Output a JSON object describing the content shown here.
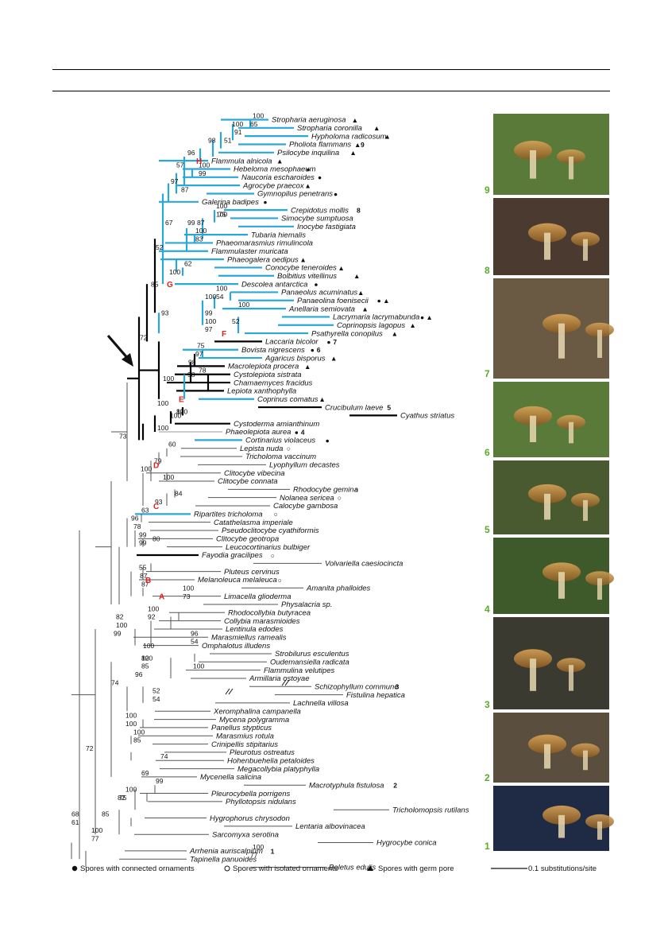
{
  "colors": {
    "clade": "#2aa7d9",
    "backbone": "#000000",
    "thin": "#555555",
    "letter": "#e02020",
    "photoLabel": "#5aaa2a"
  },
  "taxa": [
    {
      "name": "Stropharia aeruginosa",
      "sym": "▲",
      "c": "b"
    },
    {
      "name": "Stropharia coronilla",
      "sym": "▲",
      "c": "b"
    },
    {
      "name": "Hypholoma radicosum",
      "sym": "▲",
      "c": "b"
    },
    {
      "name": "Pholiota flammans",
      "sym": "▲",
      "photo": "9",
      "c": "b"
    },
    {
      "name": "Psilocybe inquilina",
      "sym": "▲",
      "c": "b"
    },
    {
      "name": "Flammula alnicola",
      "sym": "▲",
      "c": "b"
    },
    {
      "name": "Hebeloma mesophaeum",
      "sym": "●",
      "c": "b"
    },
    {
      "name": "Naucoria escharoides",
      "sym": "●",
      "c": "b"
    },
    {
      "name": "Agrocybe praecox",
      "sym": "▲",
      "c": "b"
    },
    {
      "name": "Gymnopilus penetrans",
      "sym": "●",
      "c": "b"
    },
    {
      "name": "Galerina badipes",
      "sym": "●",
      "c": "b"
    },
    {
      "name": "Crepidotus mollis",
      "photo": "8",
      "c": "b"
    },
    {
      "name": "Simocybe sumptuosa",
      "c": "b"
    },
    {
      "name": "Inocybe fastigiata",
      "c": "b"
    },
    {
      "name": "Tubaria hiemalis",
      "c": "b"
    },
    {
      "name": "Phaeomarasmius rimulincola",
      "c": "b"
    },
    {
      "name": "Flammulaster muricata",
      "c": "b"
    },
    {
      "name": "Phaeogalera oedipus",
      "sym": "▲",
      "c": "b"
    },
    {
      "name": "Conocybe teneroides",
      "sym": "▲",
      "c": "b"
    },
    {
      "name": "Bolbitius vitellinus",
      "sym": "▲",
      "c": "b"
    },
    {
      "name": "Descolea antarctica",
      "sym": "●",
      "c": "b"
    },
    {
      "name": "Panaeolus acuminatus",
      "sym": "▲",
      "c": "b"
    },
    {
      "name": "Panaeolina foenisecii",
      "sym": "● ▲",
      "c": "b"
    },
    {
      "name": "Anellaria semiovata",
      "sym": "▲",
      "c": "b"
    },
    {
      "name": "Lacrymaria lacrymabunda",
      "sym": "● ▲",
      "c": "b"
    },
    {
      "name": "Coprinopsis lagopus",
      "sym": "▲",
      "c": "b"
    },
    {
      "name": "Psathyrella conopilus",
      "sym": "▲",
      "c": "b"
    },
    {
      "name": "Laccaria bicolor",
      "sym": "●",
      "photo": "7",
      "c": "k"
    },
    {
      "name": "Bovista nigrescens",
      "sym": "●",
      "photo": "6",
      "c": "b"
    },
    {
      "name": "Agaricus bisporus",
      "sym": "▲",
      "c": "b"
    },
    {
      "name": "Macrolepiota procera",
      "sym": "▲",
      "c": "k"
    },
    {
      "name": "Cystolepiota sistrata",
      "c": "k"
    },
    {
      "name": "Chamaemyces fracidus",
      "c": "k"
    },
    {
      "name": "Lepiota xanthophylla",
      "c": "k"
    },
    {
      "name": "Coprinus comatus",
      "sym": "▲",
      "c": "b"
    },
    {
      "name": "Crucibulum laeve",
      "photo": "5",
      "c": "k"
    },
    {
      "name": "Cyathus striatus",
      "c": "k"
    },
    {
      "name": "Cystoderma amianthinum",
      "c": "k"
    },
    {
      "name": "Phaeolepiota aurea",
      "sym": "●",
      "photo": "4",
      "c": "g"
    },
    {
      "name": "Cortinarius violaceus",
      "sym": "●",
      "c": "b"
    },
    {
      "name": "Lepista nuda",
      "sym": "○",
      "c": "t"
    },
    {
      "name": "Tricholoma vaccinum",
      "c": "t"
    },
    {
      "name": "Lyophyllum decastes",
      "c": "t"
    },
    {
      "name": "Clitocybe vibecina",
      "c": "t"
    },
    {
      "name": "Clitocybe connata",
      "c": "t"
    },
    {
      "name": "Rhodocybe gemina",
      "sym": "○",
      "c": "t"
    },
    {
      "name": "Nolanea sericea",
      "sym": "○",
      "c": "t"
    },
    {
      "name": "Calocybe gambosa",
      "c": "t"
    },
    {
      "name": "Ripartites tricholoma",
      "sym": "○",
      "c": "b"
    },
    {
      "name": "Catathelasma imperiale",
      "c": "t"
    },
    {
      "name": "Pseudoclitocybe cyathiformis",
      "c": "t"
    },
    {
      "name": "Clitocybe geotropa",
      "c": "t"
    },
    {
      "name": "Leucocortinarius bulbiger",
      "c": "t"
    },
    {
      "name": "Fayodia gracilipes",
      "sym": "○",
      "c": "k"
    },
    {
      "name": "Volvariella caesiocincta",
      "c": "t"
    },
    {
      "name": "Pluteus cervinus",
      "c": "t"
    },
    {
      "name": "Melanoleuca melaleuca",
      "sym": "○",
      "c": "t"
    },
    {
      "name": "Amanita phalloides",
      "c": "t"
    },
    {
      "name": "Limacella glioderma",
      "c": "t"
    },
    {
      "name": "Physalacria sp.",
      "c": "t"
    },
    {
      "name": "Rhodocollybia butyracea",
      "c": "t"
    },
    {
      "name": "Collybia marasmioides",
      "c": "t"
    },
    {
      "name": "Lentinula edodes",
      "c": "t"
    },
    {
      "name": "Marasmiellus ramealis",
      "c": "t"
    },
    {
      "name": "Omphalotus illudens",
      "c": "t"
    },
    {
      "name": "Strobilurus esculentus",
      "c": "t"
    },
    {
      "name": "Oudemansiella radicata",
      "c": "t"
    },
    {
      "name": "Flammulina velutipes",
      "c": "t"
    },
    {
      "name": "Armillaria ostoyae",
      "c": "t"
    },
    {
      "name": "Schizophyllum commune",
      "photo": "3",
      "c": "t"
    },
    {
      "name": "Fistulina hepatica",
      "c": "t"
    },
    {
      "name": "Lachnella villosa",
      "c": "t"
    },
    {
      "name": "Xeromphalina campanella",
      "c": "t"
    },
    {
      "name": "Mycena polygramma",
      "c": "t"
    },
    {
      "name": "Panellus stypticus",
      "c": "t"
    },
    {
      "name": "Marasmius rotula",
      "c": "t"
    },
    {
      "name": "Crinipellis stipitarius",
      "c": "t"
    },
    {
      "name": "Pleurotus ostreatus",
      "c": "t"
    },
    {
      "name": "Hohenbuehelia petaloides",
      "c": "t"
    },
    {
      "name": "Megacollybia platyphylla",
      "c": "t"
    },
    {
      "name": "Mycenella salicina",
      "c": "t"
    },
    {
      "name": "Macrotyphula fistulosa",
      "photo": "2",
      "c": "t"
    },
    {
      "name": "Pleurocybella porrigens",
      "c": "t"
    },
    {
      "name": "Phyllotopsis nidulans",
      "c": "t"
    },
    {
      "name": "Tricholomopsis rutilans",
      "c": "t"
    },
    {
      "name": "Hygrophorus chrysodon",
      "c": "t"
    },
    {
      "name": "Lentaria albovinacea",
      "c": "t"
    },
    {
      "name": "Sarcomyxa serotina",
      "c": "t"
    },
    {
      "name": "Hygrocybe conica",
      "c": "t"
    },
    {
      "name": "Arrhenia auriscalpium",
      "photo": "1",
      "c": "t"
    },
    {
      "name": "Tapinella panuoides",
      "c": "t"
    },
    {
      "name": "Boletus edulis",
      "c": "t"
    }
  ],
  "supports": [
    {
      "v": "100",
      "r": 0
    },
    {
      "v": "65",
      "r": 1
    },
    {
      "v": "100",
      "r": 1
    },
    {
      "v": "91",
      "r": 2
    },
    {
      "v": "51",
      "r": 3
    },
    {
      "v": "98",
      "r": 3
    },
    {
      "v": "96",
      "r": 4.5
    },
    {
      "v": "57",
      "r": 6
    },
    {
      "v": "100",
      "r": 6
    },
    {
      "v": "99",
      "r": 7
    },
    {
      "v": "97",
      "r": 8
    },
    {
      "v": "87",
      "r": 9
    },
    {
      "v": "100",
      "r": 11
    },
    {
      "v": "100",
      "r": 12
    },
    {
      "v": "75",
      "r": 12
    },
    {
      "v": "87",
      "r": 13
    },
    {
      "v": "99",
      "r": 13
    },
    {
      "v": "67",
      "r": 13
    },
    {
      "v": "100",
      "r": 14
    },
    {
      "v": "83",
      "r": 15
    },
    {
      "v": "52",
      "r": 16
    },
    {
      "v": "62",
      "r": 18
    },
    {
      "v": "100",
      "r": 19
    },
    {
      "v": "85",
      "r": 20.5
    },
    {
      "v": "100",
      "r": 21
    },
    {
      "v": "54",
      "r": 22
    },
    {
      "v": "100",
      "r": 22
    },
    {
      "v": "100",
      "r": 23
    },
    {
      "v": "93",
      "r": 24
    },
    {
      "v": "99",
      "r": 24
    },
    {
      "v": "100",
      "r": 25
    },
    {
      "v": "52",
      "r": 25
    },
    {
      "v": "97",
      "r": 26
    },
    {
      "v": "72",
      "r": 27
    },
    {
      "v": "75",
      "r": 28
    },
    {
      "v": "97",
      "r": 29
    },
    {
      "v": "98",
      "r": 30
    },
    {
      "v": "78",
      "r": 31
    },
    {
      "v": "98",
      "r": 31.5
    },
    {
      "v": "100",
      "r": 32
    },
    {
      "v": "100",
      "r": 35
    },
    {
      "v": "100",
      "r": 36
    },
    {
      "v": "82",
      "r": 36
    },
    {
      "v": "100",
      "r": 36.5
    },
    {
      "v": "100",
      "r": 38
    },
    {
      "v": "73",
      "r": 39
    },
    {
      "v": "60",
      "r": 40
    },
    {
      "v": "79",
      "r": 42
    },
    {
      "v": "100",
      "r": 43
    },
    {
      "v": "100",
      "r": 44
    },
    {
      "v": "84",
      "r": 46
    },
    {
      "v": "93",
      "r": 47
    },
    {
      "v": "63",
      "r": 48
    },
    {
      "v": "96",
      "r": 49
    },
    {
      "v": "78",
      "r": 50
    },
    {
      "v": "99",
      "r": 51
    },
    {
      "v": "80",
      "r": 51.5
    },
    {
      "v": "99",
      "r": 52
    },
    {
      "v": "55",
      "r": 55
    },
    {
      "v": "87",
      "r": 56
    },
    {
      "v": "87",
      "r": 57
    },
    {
      "v": "100",
      "r": 57.5
    },
    {
      "v": "73",
      "r": 58.5
    },
    {
      "v": "100",
      "r": 60
    },
    {
      "v": "92",
      "r": 61
    },
    {
      "v": "82",
      "r": 61
    },
    {
      "v": "100",
      "r": 62
    },
    {
      "v": "99",
      "r": 63
    },
    {
      "v": "96",
      "r": 63
    },
    {
      "v": "54",
      "r": 64
    },
    {
      "v": "100",
      "r": 64.5
    },
    {
      "v": "100",
      "r": 66
    },
    {
      "v": "82",
      "r": 66
    },
    {
      "v": "85",
      "r": 67
    },
    {
      "v": "100",
      "r": 67
    },
    {
      "v": "96",
      "r": 68
    },
    {
      "v": "74",
      "r": 69
    },
    {
      "v": "52",
      "r": 70
    },
    {
      "v": "54",
      "r": 71
    },
    {
      "v": "100",
      "r": 73
    },
    {
      "v": "100",
      "r": 74
    },
    {
      "v": "100",
      "r": 75
    },
    {
      "v": "85",
      "r": 76
    },
    {
      "v": "72",
      "r": 77
    },
    {
      "v": "74",
      "r": 78
    },
    {
      "v": "69",
      "r": 80
    },
    {
      "v": "99",
      "r": 81
    },
    {
      "v": "100",
      "r": 82
    },
    {
      "v": "75",
      "r": 83
    },
    {
      "v": "82",
      "r": 83
    },
    {
      "v": "85",
      "r": 85
    },
    {
      "v": "68",
      "r": 85
    },
    {
      "v": "61",
      "r": 86
    },
    {
      "v": "100",
      "r": 87
    },
    {
      "v": "77",
      "r": 88
    },
    {
      "v": "100",
      "r": 89
    },
    {
      "v": "77",
      "r": 90
    }
  ],
  "node_letters": [
    {
      "letter": "H",
      "r": 5
    },
    {
      "letter": "G",
      "r": 20
    },
    {
      "letter": "F",
      "r": 26
    },
    {
      "letter": "E",
      "r": 34
    },
    {
      "letter": "D",
      "r": 42
    },
    {
      "letter": "C",
      "r": 47
    },
    {
      "letter": "B",
      "r": 56
    },
    {
      "letter": "A",
      "r": 58
    }
  ],
  "photos": [
    "9",
    "8",
    "7",
    "6",
    "5",
    "4",
    "3",
    "2",
    "1"
  ],
  "legend": {
    "connected": "Spores with connected ornaments",
    "isolated": "Spores with isolated ornaments",
    "germ_pore": "Spores with germ pore",
    "scale": "0.1 substitutions/site"
  }
}
